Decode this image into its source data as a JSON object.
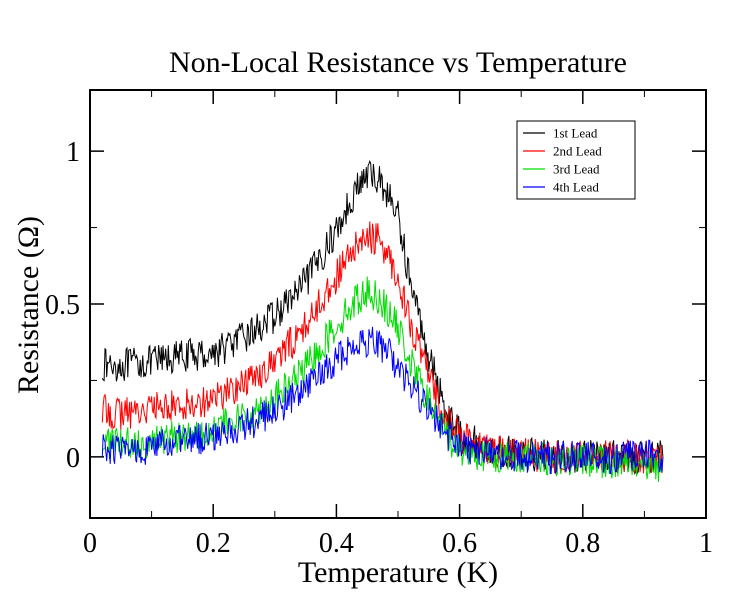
{
  "chart_data": {
    "type": "line",
    "title": "Non-Local Resistance vs Temperature",
    "xlabel": "Temperature (K)",
    "ylabel": "Resistance (Ω)",
    "xlim": [
      0,
      1
    ],
    "ylim": [
      -0.2,
      1.2
    ],
    "x_ticks": [
      0,
      0.2,
      0.4,
      0.6,
      0.8,
      1
    ],
    "x_tick_labels": [
      "0",
      "0.2",
      "0.4",
      "0.6",
      "0.8",
      "1"
    ],
    "y_ticks": [
      0,
      0.5,
      1
    ],
    "y_tick_labels": [
      "0",
      "0.5",
      "1"
    ],
    "grid": false,
    "legend_position": "top-right",
    "x": [
      0.02,
      0.05,
      0.1,
      0.15,
      0.2,
      0.25,
      0.3,
      0.35,
      0.4,
      0.43,
      0.45,
      0.47,
      0.5,
      0.52,
      0.55,
      0.58,
      0.6,
      0.63,
      0.65,
      0.7,
      0.75,
      0.8,
      0.85,
      0.9,
      0.93
    ],
    "series": [
      {
        "name": "1st Lead",
        "color": "#000000",
        "values": [
          0.3,
          0.3,
          0.31,
          0.33,
          0.34,
          0.39,
          0.46,
          0.57,
          0.74,
          0.87,
          0.92,
          0.91,
          0.79,
          0.57,
          0.33,
          0.14,
          0.08,
          0.04,
          0.02,
          0.01,
          0.0,
          0.0,
          0.0,
          0.0,
          0.0
        ]
      },
      {
        "name": "2nd Lead",
        "color": "#ff0000",
        "values": [
          0.15,
          0.14,
          0.16,
          0.17,
          0.19,
          0.24,
          0.31,
          0.43,
          0.59,
          0.68,
          0.72,
          0.71,
          0.59,
          0.44,
          0.26,
          0.12,
          0.07,
          0.03,
          0.02,
          0.01,
          0.0,
          0.0,
          0.0,
          0.0,
          0.0
        ]
      },
      {
        "name": "3rd Lead",
        "color": "#00dd00",
        "values": [
          0.05,
          0.04,
          0.05,
          0.07,
          0.09,
          0.13,
          0.19,
          0.29,
          0.43,
          0.51,
          0.54,
          0.52,
          0.42,
          0.31,
          0.18,
          0.07,
          0.02,
          0.01,
          0.0,
          0.0,
          -0.01,
          -0.01,
          -0.02,
          -0.02,
          -0.03
        ]
      },
      {
        "name": "4th Lead",
        "color": "#0000ff",
        "values": [
          0.03,
          0.02,
          0.03,
          0.05,
          0.07,
          0.1,
          0.15,
          0.22,
          0.32,
          0.37,
          0.38,
          0.37,
          0.3,
          0.23,
          0.15,
          0.07,
          0.04,
          0.02,
          0.01,
          0.0,
          0.0,
          0.0,
          0.0,
          0.0,
          0.0
        ]
      }
    ]
  }
}
